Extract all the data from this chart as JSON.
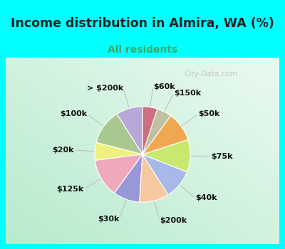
{
  "title": "Income distribution in Almira, WA (%)",
  "subtitle": "All residents",
  "title_color": "#222222",
  "subtitle_color": "#3aaa6a",
  "background_outer": "#00ffff",
  "background_inner_tl": "#c8edd8",
  "background_inner_br": "#e8f8f0",
  "watermark": "℗ City-Data.com",
  "labels": [
    "> $200k",
    "$100k",
    "$20k",
    "$125k",
    "$30k",
    "$200k",
    "$40k",
    "$75k",
    "$50k",
    "$150k",
    "$60k"
  ],
  "sizes": [
    9,
    12,
    6,
    13,
    9,
    10,
    10,
    11,
    10,
    5,
    5
  ],
  "colors": [
    "#b8a8d8",
    "#a8c890",
    "#f0f080",
    "#f0a8bc",
    "#9898d8",
    "#f5c8a0",
    "#a8b8e8",
    "#c8e870",
    "#f0a850",
    "#c0c0a0",
    "#cc7080"
  ],
  "label_fontsize": 8.0,
  "startangle": 90,
  "figsize": [
    4.0,
    3.5
  ],
  "dpi": 100
}
